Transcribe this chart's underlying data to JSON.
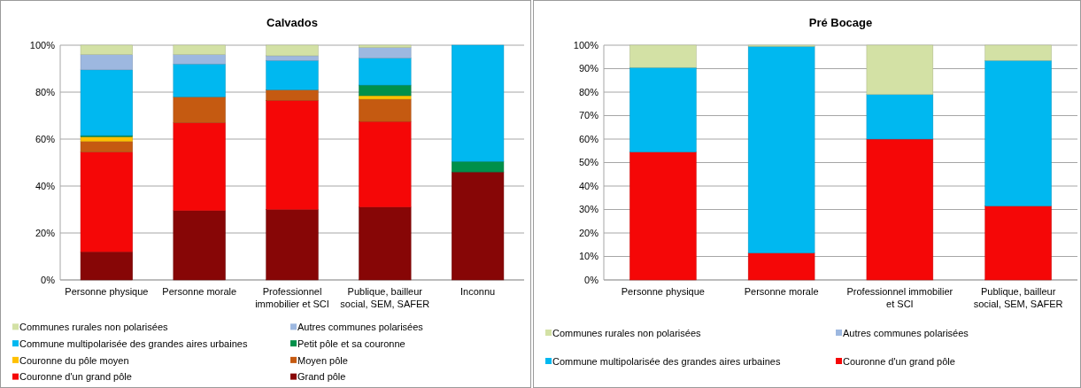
{
  "chart_data": [
    {
      "type": "bar",
      "stacked": true,
      "title": "Calvados",
      "categories": [
        "Personne physique",
        "Personne morale",
        "Professionnel immobilier et SCI",
        "Publique, bailleur social, SEM, SAFER",
        "Inconnu"
      ],
      "ylim": [
        0,
        100
      ],
      "yticks": [
        {
          "value": 0,
          "label": "0%"
        },
        {
          "value": 20,
          "label": "20%"
        },
        {
          "value": 40,
          "label": "40%"
        },
        {
          "value": 60,
          "label": "60%"
        },
        {
          "value": 80,
          "label": "80%"
        },
        {
          "value": 100,
          "label": "100%"
        }
      ],
      "grid": "y",
      "legend": "bottom",
      "series": [
        {
          "name": "Grand pôle",
          "color": "#870606",
          "values": [
            12,
            29.5,
            30,
            31,
            46
          ]
        },
        {
          "name": "Couronne d'un grand pôle",
          "color": "#f50707",
          "values": [
            42.5,
            37.5,
            46.5,
            36.5,
            0
          ]
        },
        {
          "name": "Moyen pôle",
          "color": "#c55a11",
          "values": [
            4.5,
            11,
            4.5,
            9.5,
            0
          ]
        },
        {
          "name": "Couronne du pôle moyen",
          "color": "#ffc000",
          "values": [
            2,
            0,
            0,
            1.5,
            0
          ]
        },
        {
          "name": "Petit pôle et sa couronne",
          "color": "#00904a",
          "values": [
            0.5,
            0,
            0,
            4.5,
            4.5
          ]
        },
        {
          "name": "Commune multipolarisée des grandes aires urbaines",
          "color": "#00b8f0",
          "values": [
            28,
            14,
            12.5,
            11.5,
            49.5
          ]
        },
        {
          "name": "Autres communes polarisées",
          "color": "#9db8e0",
          "values": [
            6.5,
            4,
            2,
            4.5,
            0
          ]
        },
        {
          "name": "Communes rurales non polarisées",
          "color": "#d3e1a5",
          "values": [
            4,
            4,
            4.5,
            1,
            0
          ]
        }
      ]
    },
    {
      "type": "bar",
      "stacked": true,
      "title": "Pré Bocage",
      "categories": [
        "Personne physique",
        "Personne morale",
        "Professionnel immobilier et SCI",
        "Publique, bailleur social, SEM, SAFER"
      ],
      "ylim": [
        0,
        100
      ],
      "yticks": [
        {
          "value": 0,
          "label": "0%"
        },
        {
          "value": 10,
          "label": "10%"
        },
        {
          "value": 20,
          "label": "20%"
        },
        {
          "value": 30,
          "label": "30%"
        },
        {
          "value": 40,
          "label": "40%"
        },
        {
          "value": 50,
          "label": "50%"
        },
        {
          "value": 60,
          "label": "60%"
        },
        {
          "value": 70,
          "label": "70%"
        },
        {
          "value": 80,
          "label": "80%"
        },
        {
          "value": 90,
          "label": "90%"
        },
        {
          "value": 100,
          "label": "100%"
        }
      ],
      "grid": "y",
      "legend": "bottom",
      "series": [
        {
          "name": "Couronne d'un grand pôle",
          "color": "#f50707",
          "values": [
            54.5,
            11.5,
            60,
            31.5
          ]
        },
        {
          "name": "Commune multipolarisée des grandes aires urbaines",
          "color": "#00b8f0",
          "values": [
            36,
            88,
            19,
            62
          ]
        },
        {
          "name": "Autres communes polarisées",
          "color": "#9db8e0",
          "values": [
            0,
            0,
            0,
            0
          ]
        },
        {
          "name": "Communes rurales non polarisées",
          "color": "#d3e1a5",
          "values": [
            9.5,
            0.5,
            21,
            6.5
          ]
        }
      ]
    }
  ]
}
